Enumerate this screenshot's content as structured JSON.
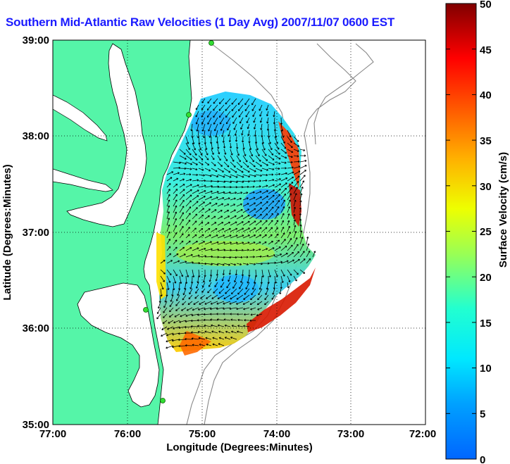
{
  "title": "Southern Mid-Atlantic Raw Velocities (1 Day Avg) 2007/11/07 0600 EST",
  "map": {
    "x_axis": {
      "label": "Longitude (Degrees:Minutes)",
      "ticks": [
        "77:00",
        "76:00",
        "75:00",
        "74:00",
        "73:00",
        "72:00"
      ]
    },
    "y_axis": {
      "label": "Latitude (Degrees:Minutes)",
      "ticks": [
        "39:00",
        "38:00",
        "37:00",
        "36:00",
        "35:00"
      ]
    },
    "land_color": "#55f5a8",
    "grid": "dotted"
  },
  "colorbar": {
    "label": "Surface Velocity (cm/s)",
    "ticks": [
      "50",
      "45",
      "40",
      "35",
      "30",
      "25",
      "20",
      "15",
      "10",
      "5",
      "0"
    ],
    "range": [
      0,
      50
    ],
    "colormap": "jet"
  }
}
